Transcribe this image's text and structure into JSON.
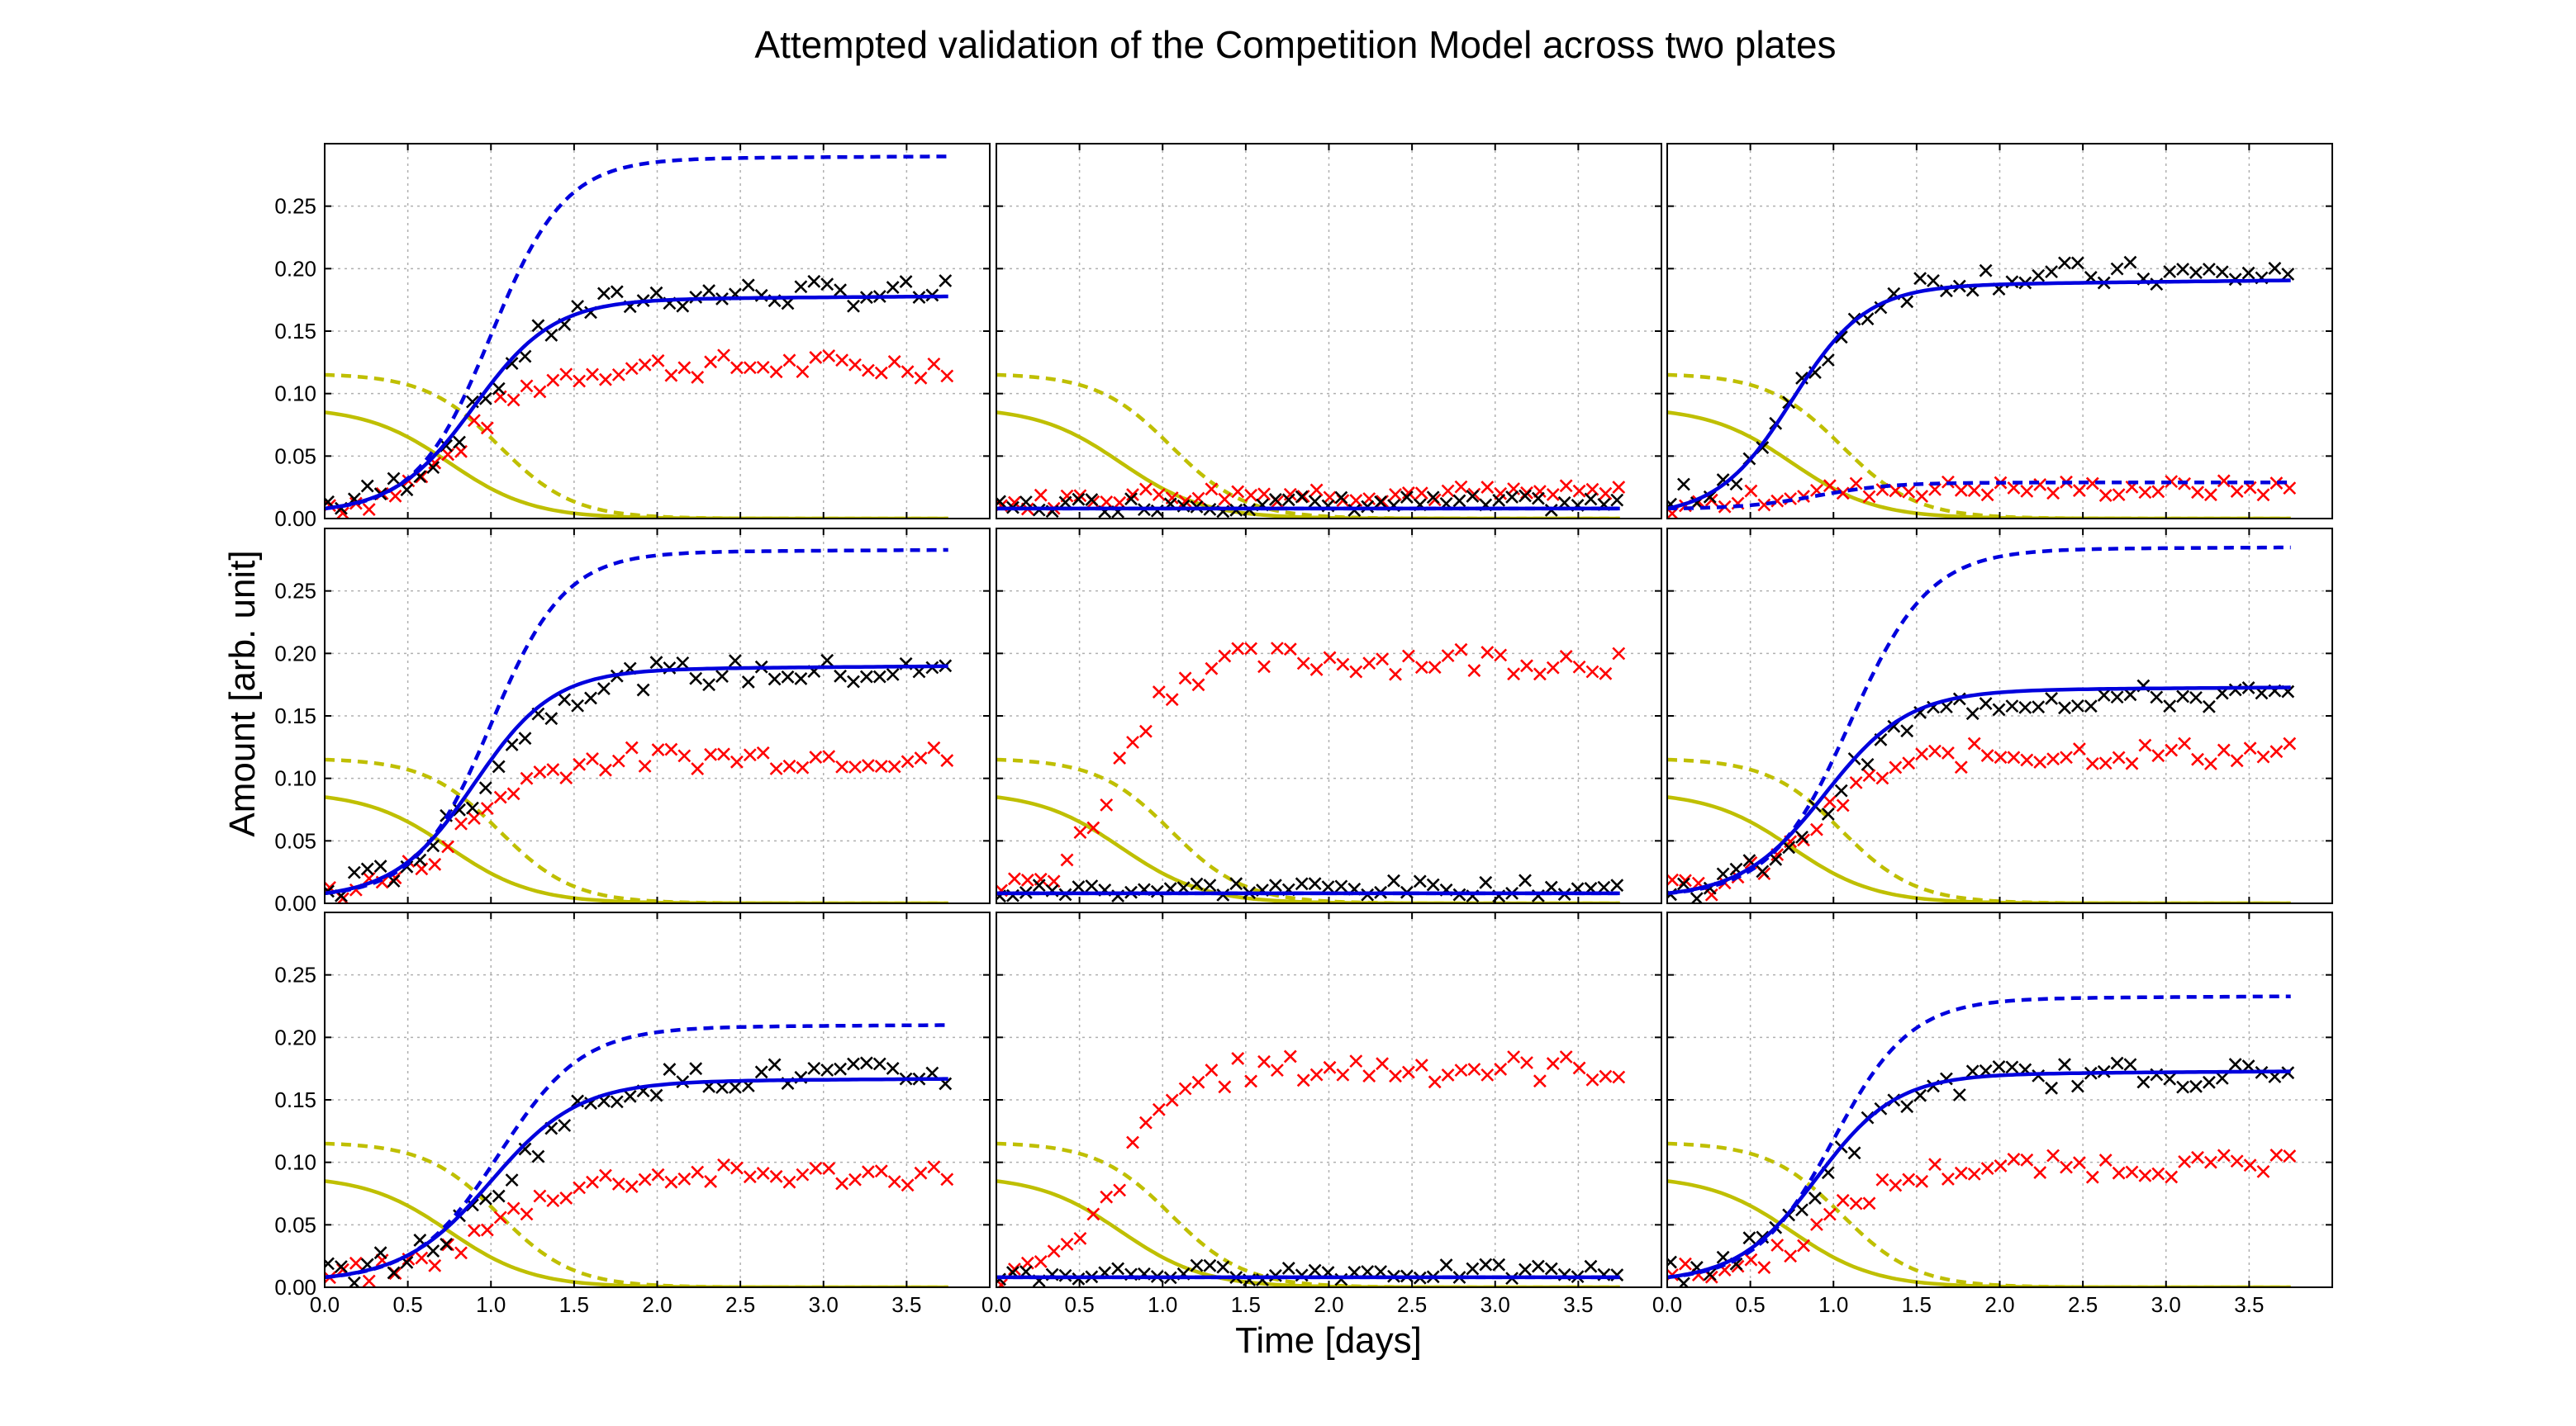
{
  "figure": {
    "title": "Attempted validation of the Competition Model across two plates",
    "xlabel": "Time [days]",
    "ylabel": "Amount [arb. unit]"
  },
  "chart_data": {
    "type": "scatter",
    "title": "Attempted validation of the Competition Model across two plates",
    "xlabel": "Time [days]",
    "ylabel": "Amount [arb. unit]",
    "xlim": [
      0.0,
      4.0
    ],
    "ylim": [
      0.0,
      0.3
    ],
    "xticks": [
      "0.0",
      "0.5",
      "1.0",
      "1.5",
      "2.0",
      "2.5",
      "3.0",
      "3.5"
    ],
    "yticks": [
      "0.00",
      "0.05",
      "0.10",
      "0.15",
      "0.20",
      "0.25"
    ],
    "grid": true,
    "layout": {
      "rows": 3,
      "cols": 3
    },
    "colors": {
      "model_blue": "#0000dd",
      "nutrient_olive": "#bfbf00",
      "obs_black": "#000000",
      "obs_red": "#ff0000"
    },
    "panels": [
      {
        "row": 0,
        "col": 0,
        "blue_solid_final": 0.178,
        "blue_solid_mid": 0.9,
        "blue_solid_rate": 4.2,
        "blue_dash_final": 0.29,
        "blue_dash_mid": 1.0,
        "blue_dash_rate": 4.5,
        "black_final": 0.18,
        "black_mid": 0.95,
        "black_rate": 4.0,
        "red_final": 0.122,
        "red_mid": 0.85,
        "red_rate": 4.5,
        "red_lag": 0
      },
      {
        "row": 0,
        "col": 1,
        "blue_solid_final": 0.008,
        "blue_solid_mid": 0.5,
        "blue_solid_rate": 4.0,
        "blue_dash_final": 0.008,
        "blue_dash_mid": 0.5,
        "blue_dash_rate": 4.0,
        "black_final": 0.012,
        "black_mid": 0.3,
        "black_rate": 4.0,
        "red_final": 0.02,
        "red_mid": 0.3,
        "red_rate": 4.0,
        "red_lag": 0
      },
      {
        "row": 0,
        "col": 2,
        "blue_solid_final": 0.191,
        "blue_solid_mid": 0.75,
        "blue_solid_rate": 4.5,
        "blue_dash_final": 0.029,
        "blue_dash_mid": 0.9,
        "blue_dash_rate": 4.5,
        "black_final": 0.195,
        "black_mid": 0.8,
        "black_rate": 4.3,
        "red_final": 0.024,
        "red_mid": 0.5,
        "red_rate": 4.0,
        "red_lag": 0
      },
      {
        "row": 1,
        "col": 0,
        "blue_solid_final": 0.19,
        "blue_solid_mid": 0.9,
        "blue_solid_rate": 4.2,
        "blue_dash_final": 0.283,
        "blue_dash_mid": 1.0,
        "blue_dash_rate": 4.5,
        "black_final": 0.185,
        "black_mid": 0.95,
        "black_rate": 4.0,
        "red_final": 0.117,
        "red_mid": 0.85,
        "red_rate": 4.5,
        "red_lag": 0
      },
      {
        "row": 1,
        "col": 1,
        "blue_solid_final": 0.008,
        "blue_solid_mid": 0.5,
        "blue_solid_rate": 4.0,
        "blue_dash_final": 0.008,
        "blue_dash_mid": 0.5,
        "blue_dash_rate": 4.0,
        "black_final": 0.012,
        "black_mid": 0.3,
        "black_rate": 4.0,
        "red_final": 0.195,
        "red_mid": 0.7,
        "red_rate": 6.0,
        "red_lag": 0
      },
      {
        "row": 1,
        "col": 2,
        "blue_solid_final": 0.173,
        "blue_solid_mid": 0.95,
        "blue_solid_rate": 4.0,
        "blue_dash_final": 0.285,
        "blue_dash_mid": 1.1,
        "blue_dash_rate": 4.2,
        "black_final": 0.165,
        "black_mid": 1.0,
        "black_rate": 4.0,
        "red_final": 0.12,
        "red_mid": 0.9,
        "red_rate": 4.5,
        "red_lag": 0
      },
      {
        "row": 2,
        "col": 0,
        "blue_solid_final": 0.167,
        "blue_solid_mid": 1.0,
        "blue_solid_rate": 3.8,
        "blue_dash_final": 0.21,
        "blue_dash_mid": 1.05,
        "blue_dash_rate": 4.0,
        "black_final": 0.17,
        "black_mid": 1.1,
        "black_rate": 3.6,
        "red_final": 0.09,
        "red_mid": 1.0,
        "red_rate": 4.0,
        "red_lag": 0
      },
      {
        "row": 2,
        "col": 1,
        "blue_solid_final": 0.008,
        "blue_solid_mid": 0.5,
        "blue_solid_rate": 4.0,
        "blue_dash_final": 0.008,
        "blue_dash_mid": 0.5,
        "blue_dash_rate": 4.0,
        "black_final": 0.012,
        "black_mid": 0.3,
        "black_rate": 4.0,
        "red_final": 0.175,
        "red_mid": 0.75,
        "red_rate": 6.0,
        "red_lag": 0
      },
      {
        "row": 2,
        "col": 2,
        "blue_solid_final": 0.173,
        "blue_solid_mid": 0.9,
        "blue_solid_rate": 4.2,
        "blue_dash_final": 0.233,
        "blue_dash_mid": 1.0,
        "blue_dash_rate": 4.3,
        "black_final": 0.17,
        "black_mid": 0.95,
        "black_rate": 4.0,
        "red_final": 0.097,
        "red_mid": 0.95,
        "red_rate": 4.2,
        "red_lag": 0
      }
    ],
    "nutrient_curves": {
      "olive_solid": {
        "y0": 0.085,
        "mid": 0.75,
        "rate": 4.0
      },
      "olive_dash": {
        "y0": 0.115,
        "mid": 1.05,
        "rate": 4.5
      }
    }
  }
}
